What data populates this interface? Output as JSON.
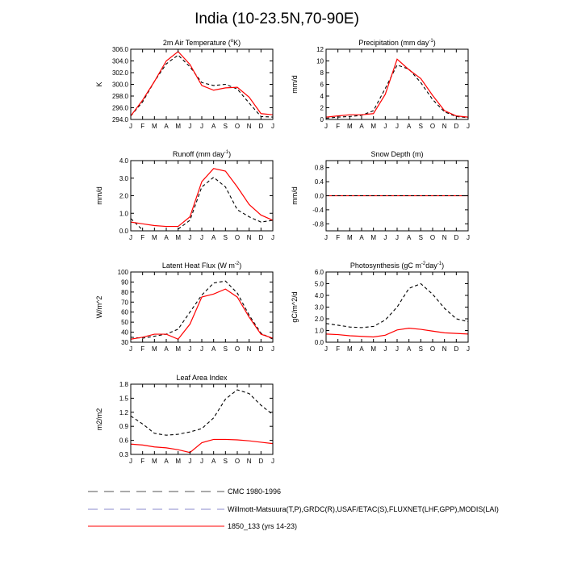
{
  "title": "India (10-23.5N,70-90E)",
  "months": [
    "J",
    "F",
    "M",
    "A",
    "M",
    "J",
    "J",
    "A",
    "S",
    "O",
    "N",
    "D",
    "J"
  ],
  "colors": {
    "obs": "#000000",
    "model": "#ff0000",
    "legend_obs_b": "#8888cc",
    "axis": "#000000"
  },
  "chart_data": [
    {
      "type": "line",
      "title_pre": "2m Air Temperature (",
      "title_sup": "o",
      "title_post": "K)",
      "ylabel": "K",
      "ylim": [
        294,
        306
      ],
      "yticks": [
        294.0,
        296.0,
        298.0,
        300.0,
        302.0,
        304.0,
        306.0
      ],
      "ytick_labels": [
        "294.0",
        "296.0",
        "298.0",
        "300.0",
        "302.0",
        "304.0",
        "306.0"
      ],
      "series": [
        {
          "style": "obs",
          "values": [
            294.6,
            297.0,
            300.5,
            303.5,
            305.0,
            303.0,
            300.3,
            299.8,
            300.0,
            299.2,
            296.8,
            294.5,
            294.4
          ]
        },
        {
          "style": "model",
          "values": [
            294.6,
            297.3,
            300.5,
            304.0,
            305.6,
            303.4,
            299.8,
            299.0,
            299.4,
            299.5,
            297.8,
            295.0,
            294.8
          ]
        }
      ]
    },
    {
      "type": "line",
      "title_pre": "Precipitation (mm day",
      "title_sup": "-1",
      "title_post": ")",
      "ylabel": "mm/d",
      "ylim": [
        0,
        12
      ],
      "yticks": [
        0,
        2,
        4,
        6,
        8,
        10,
        12
      ],
      "ytick_labels": [
        "0",
        "2",
        "4",
        "6",
        "8",
        "10",
        "12"
      ],
      "series": [
        {
          "style": "obs",
          "values": [
            0.2,
            0.4,
            0.5,
            0.7,
            1.5,
            5.3,
            9.3,
            8.6,
            6.3,
            3.4,
            1.3,
            0.5,
            0.3
          ]
        },
        {
          "style": "model",
          "values": [
            0.4,
            0.6,
            0.8,
            0.8,
            1.0,
            4.3,
            10.3,
            8.5,
            7.0,
            4.1,
            1.5,
            0.6,
            0.4
          ]
        }
      ]
    },
    {
      "type": "line",
      "title_pre": "Runoff (mm day",
      "title_sup": "-1",
      "title_post": ")",
      "ylabel": "mm/d",
      "ylim": [
        0,
        4
      ],
      "yticks": [
        0.0,
        1.0,
        2.0,
        3.0,
        4.0
      ],
      "ytick_labels": [
        "0.0",
        "1.0",
        "2.0",
        "3.0",
        "4.0"
      ],
      "series": [
        {
          "style": "obs",
          "values": [
            0.7,
            0.05,
            null,
            null,
            0.1,
            0.6,
            2.5,
            3.05,
            2.5,
            1.2,
            0.8,
            0.5,
            0.6
          ]
        },
        {
          "style": "model",
          "values": [
            0.5,
            0.4,
            0.3,
            0.25,
            0.25,
            0.8,
            2.8,
            3.55,
            3.4,
            2.5,
            1.5,
            0.9,
            0.6
          ]
        }
      ]
    },
    {
      "type": "line",
      "title_pre": "Snow Depth (m)",
      "title_sup": "",
      "title_post": "",
      "ylabel": "mm/d",
      "ylim": [
        -1,
        1
      ],
      "yticks": [
        -0.8,
        -0.4,
        0.0,
        0.4,
        0.8
      ],
      "ytick_labels": [
        "-0.8",
        "-0.4",
        "0.0",
        "0.4",
        "0.8"
      ],
      "series": [
        {
          "style": "model",
          "values": [
            0,
            0,
            0,
            0,
            0,
            0,
            0,
            0,
            0,
            0,
            0,
            0,
            0
          ]
        },
        {
          "style": "obs",
          "values": [
            0,
            0,
            0,
            0,
            0,
            0,
            0,
            0,
            0,
            0,
            0,
            0,
            0
          ]
        }
      ]
    },
    {
      "type": "line",
      "title_pre": "Latent Heat Flux (W m",
      "title_sup": "-2",
      "title_post": ")",
      "ylabel": "W/m^2",
      "ylim": [
        30,
        100
      ],
      "yticks": [
        30,
        40,
        50,
        60,
        70,
        80,
        90,
        100
      ],
      "ytick_labels": [
        "30",
        "40",
        "50",
        "60",
        "70",
        "80",
        "90",
        "100"
      ],
      "series": [
        {
          "style": "obs",
          "values": [
            35,
            34,
            36,
            38,
            43,
            60,
            77,
            89,
            91,
            79,
            57,
            39,
            33
          ]
        },
        {
          "style": "model",
          "values": [
            33,
            35,
            38,
            38,
            33,
            48,
            75,
            78,
            83,
            75,
            55,
            38,
            34
          ]
        }
      ]
    },
    {
      "type": "line",
      "title_pre": "Photosynthesis (gC m",
      "title_sup": "-2",
      "title_post": "day",
      "title_sup2": "-1",
      "title_post2": ")",
      "ylabel": "gC/m^2/d",
      "ylim": [
        0,
        6
      ],
      "yticks": [
        0.0,
        1.0,
        2.0,
        3.0,
        4.0,
        5.0,
        6.0
      ],
      "ytick_labels": [
        "0.0",
        "1.0",
        "2.0",
        "3.0",
        "4.0",
        "5.0",
        "6.0"
      ],
      "series": [
        {
          "style": "obs",
          "values": [
            1.6,
            1.45,
            1.3,
            1.25,
            1.35,
            1.9,
            3.0,
            4.6,
            5.0,
            4.1,
            2.9,
            2.0,
            1.75
          ]
        },
        {
          "style": "model",
          "values": [
            0.7,
            0.65,
            0.55,
            0.5,
            0.45,
            0.6,
            1.05,
            1.2,
            1.1,
            0.95,
            0.8,
            0.75,
            0.7
          ]
        }
      ]
    },
    {
      "type": "line",
      "title_pre": "Leaf Area Index",
      "title_sup": "",
      "title_post": "",
      "ylabel": "m2/m2",
      "ylim": [
        0.3,
        1.8
      ],
      "yticks": [
        0.3,
        0.6,
        0.9,
        1.2,
        1.5,
        1.8
      ],
      "ytick_labels": [
        "0.3",
        "0.6",
        "0.9",
        "1.2",
        "1.5",
        "1.8"
      ],
      "series": [
        {
          "style": "obs",
          "values": [
            1.12,
            0.95,
            0.75,
            0.71,
            0.73,
            0.78,
            0.85,
            1.08,
            1.48,
            1.68,
            1.6,
            1.35,
            1.15
          ]
        },
        {
          "style": "model",
          "values": [
            0.52,
            0.5,
            0.46,
            0.44,
            0.4,
            0.34,
            0.55,
            0.62,
            0.62,
            0.61,
            0.59,
            0.56,
            0.53
          ]
        }
      ]
    }
  ],
  "legend": [
    {
      "label": "CMC 1980-1996",
      "style": "obs"
    },
    {
      "label": "Willmott-Matsuura(T,P),GRDC(R),USAF/ETAC(S),FLUXNET(LHF,GPP),MODIS(LAI)",
      "style": "obs_b"
    },
    {
      "label": "1850_133 (yrs 14-23)",
      "style": "model"
    }
  ]
}
